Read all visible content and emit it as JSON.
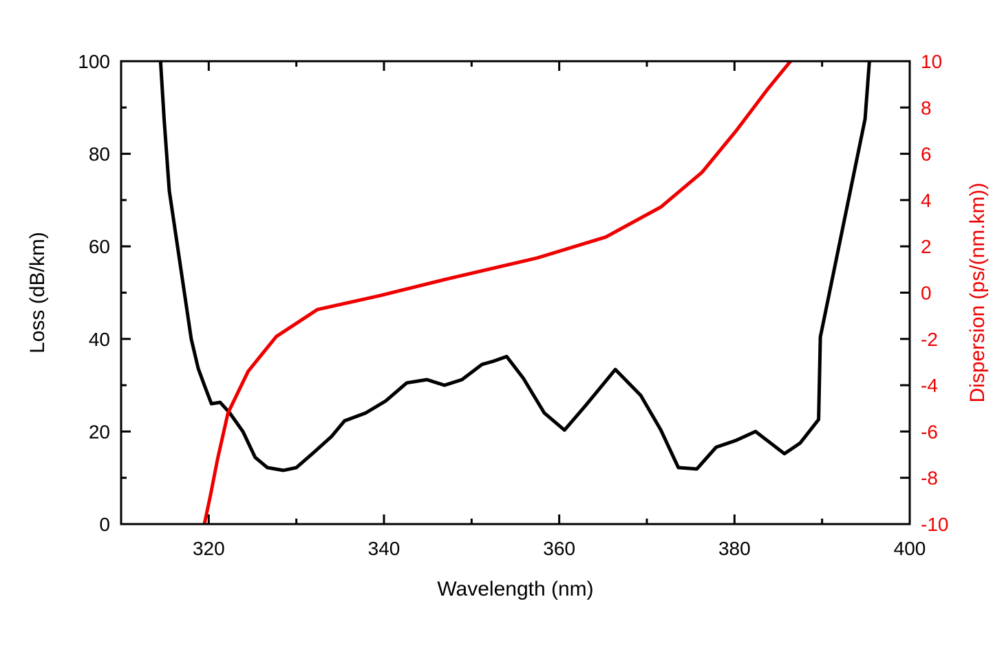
{
  "chart_data": {
    "type": "line",
    "title": "",
    "xlabel": "Wavelength (nm)",
    "ylabel": "Loss (dB/km)",
    "y2label": "Dispersion (ps/(nm.km))",
    "xlim": [
      310,
      400
    ],
    "ylim": [
      0,
      100
    ],
    "y2lim": [
      -10,
      10
    ],
    "xticks": [
      320,
      340,
      360,
      380,
      400
    ],
    "xminor_ticks": [
      310,
      330,
      350,
      370,
      390
    ],
    "yticks": [
      0,
      20,
      40,
      60,
      80,
      100
    ],
    "yminor_ticks": [
      10,
      30,
      50,
      70,
      90
    ],
    "y2ticks": [
      -10,
      -8,
      -6,
      -4,
      -2,
      0,
      2,
      4,
      6,
      8,
      10
    ],
    "grid": false,
    "legend": "none",
    "colors": {
      "loss": "#000000",
      "dispersion": "#ee0000",
      "axis": "#000000"
    },
    "series": [
      {
        "name": "Loss",
        "axis": "left",
        "color": "#000000",
        "x": [
          314.5,
          314.9,
          315.5,
          318.0,
          318.8,
          319.5,
          320.3,
          321.3,
          322.4,
          323.9,
          325.3,
          326.7,
          328.5,
          330.0,
          332.0,
          334.0,
          335.5,
          337.9,
          340.2,
          342.6,
          344.9,
          346.9,
          348.9,
          351.2,
          352.5,
          354.0,
          355.9,
          358.3,
          360.6,
          363.0,
          366.4,
          369.3,
          371.6,
          373.6,
          375.7,
          377.9,
          380.2,
          382.4,
          385.7,
          387.5,
          389.6,
          389.8,
          394.9,
          395.4
        ],
        "y": [
          100,
          87.7,
          72,
          40,
          33.6,
          30,
          26,
          26.3,
          24,
          20,
          14.4,
          12.2,
          11.6,
          12.2,
          15.5,
          18.9,
          22.3,
          24,
          26.6,
          30.5,
          31.2,
          30,
          31.2,
          34.5,
          35.2,
          36.2,
          31.5,
          24,
          20.3,
          25.6,
          33.4,
          27.8,
          20.3,
          12.2,
          11.9,
          16.6,
          18.1,
          20,
          15.2,
          17.5,
          22.6,
          40.4,
          87.5,
          100
        ]
      },
      {
        "name": "Dispersion",
        "axis": "right",
        "color": "#ee0000",
        "x": [
          319.5,
          320.2,
          321.0,
          322.2,
          324.5,
          327.7,
          332.4,
          339.5,
          347.3,
          357.5,
          365.3,
          371.6,
          376.3,
          380.2,
          383.8,
          386.4
        ],
        "y": [
          -10,
          -8.75,
          -7.2,
          -5.2,
          -3.4,
          -1.9,
          -0.73,
          -0.13,
          0.6,
          1.5,
          2.4,
          3.7,
          5.2,
          7.0,
          8.8,
          10
        ]
      }
    ]
  }
}
